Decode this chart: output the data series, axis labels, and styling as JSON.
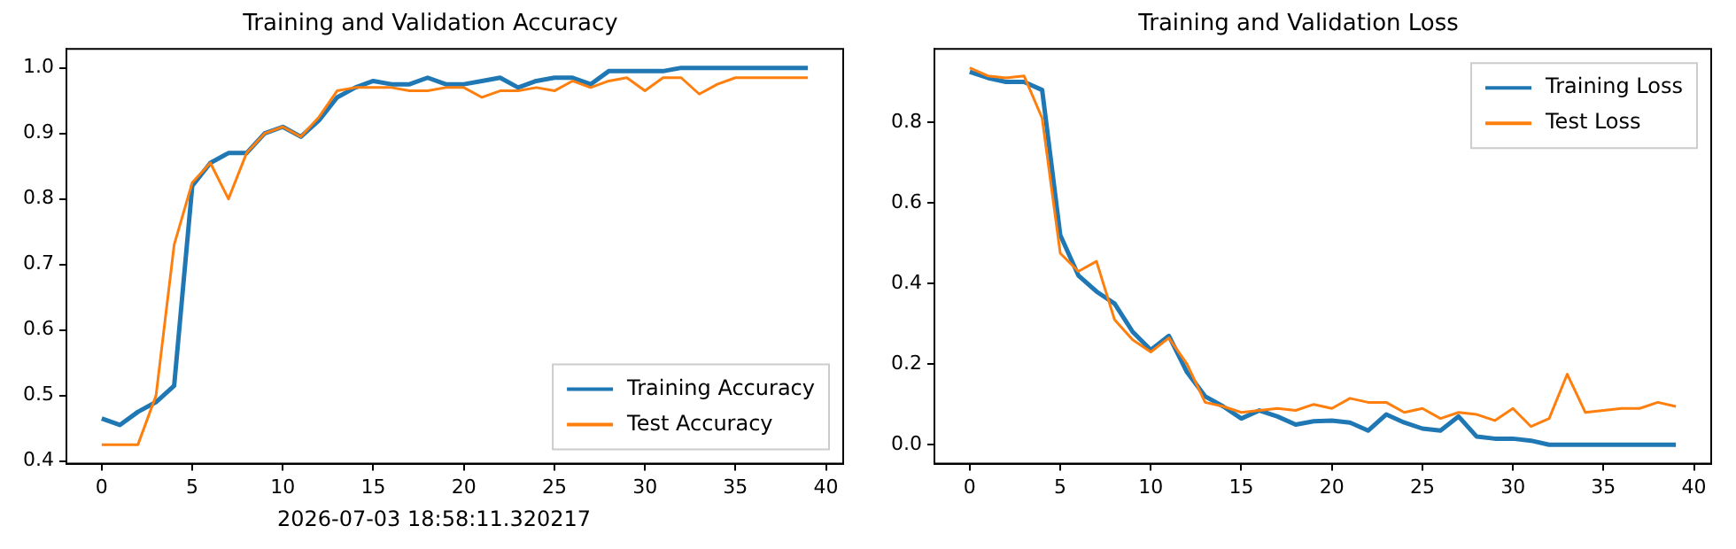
{
  "chart_data": [
    {
      "type": "line",
      "title": "Training and Validation Accuracy",
      "legend": "bottom right",
      "x": [
        0,
        1,
        2,
        3,
        4,
        5,
        6,
        7,
        8,
        9,
        10,
        11,
        12,
        13,
        14,
        15,
        16,
        17,
        18,
        19,
        20,
        21,
        22,
        23,
        24,
        25,
        26,
        27,
        28,
        29,
        30,
        31,
        32,
        33,
        34,
        35,
        36,
        37,
        38,
        39
      ],
      "series": [
        {
          "name": "Training Accuracy",
          "color": "#1f77b4",
          "values": [
            0.465,
            0.455,
            0.475,
            0.49,
            0.515,
            0.82,
            0.855,
            0.87,
            0.87,
            0.9,
            0.91,
            0.895,
            0.92,
            0.955,
            0.97,
            0.98,
            0.975,
            0.975,
            0.985,
            0.975,
            0.975,
            0.98,
            0.985,
            0.97,
            0.98,
            0.985,
            0.985,
            0.975,
            0.995,
            0.995,
            0.995,
            0.995,
            1.0,
            1.0,
            1.0,
            1.0,
            1.0,
            1.0,
            1.0,
            1.0
          ]
        },
        {
          "name": "Test Accuracy",
          "color": "#ff7f0e",
          "values": [
            0.425,
            0.425,
            0.425,
            0.5,
            0.73,
            0.825,
            0.855,
            0.8,
            0.87,
            0.9,
            0.91,
            0.895,
            0.925,
            0.965,
            0.97,
            0.97,
            0.97,
            0.965,
            0.965,
            0.97,
            0.97,
            0.955,
            0.965,
            0.965,
            0.97,
            0.965,
            0.98,
            0.97,
            0.98,
            0.985,
            0.965,
            0.985,
            0.985,
            0.96,
            0.975,
            0.985,
            0.985,
            0.985,
            0.985,
            0.985
          ]
        }
      ],
      "xlim": [
        -1.95,
        40.95
      ],
      "xticks": [
        0,
        5,
        10,
        15,
        20,
        25,
        30,
        35,
        40
      ],
      "ylim": [
        0.396,
        1.029
      ],
      "yticks": [
        {
          "value": 0.4,
          "label": "0.4"
        },
        {
          "value": 0.5,
          "label": "0.5"
        },
        {
          "value": 0.6,
          "label": "0.6"
        },
        {
          "value": 0.7,
          "label": "0.7"
        },
        {
          "value": 0.8,
          "label": "0.8"
        },
        {
          "value": 0.9,
          "label": "0.9"
        },
        {
          "value": 1.0,
          "label": "1.0"
        }
      ],
      "annotations": [
        "2026-07-03 18:58:11.320217"
      ]
    },
    {
      "type": "line",
      "title": "Training and Validation Loss",
      "legend": "top right",
      "x": [
        0,
        1,
        2,
        3,
        4,
        5,
        6,
        7,
        8,
        9,
        10,
        11,
        12,
        13,
        14,
        15,
        16,
        17,
        18,
        19,
        20,
        21,
        22,
        23,
        24,
        25,
        26,
        27,
        28,
        29,
        30,
        31,
        32,
        33,
        34,
        35,
        36,
        37,
        38,
        39
      ],
      "series": [
        {
          "name": "Training Loss",
          "color": "#1f77b4",
          "values": [
            0.925,
            0.91,
            0.9,
            0.9,
            0.88,
            0.52,
            0.42,
            0.38,
            0.35,
            0.28,
            0.235,
            0.27,
            0.18,
            0.12,
            0.095,
            0.065,
            0.085,
            0.07,
            0.05,
            0.058,
            0.06,
            0.055,
            0.035,
            0.075,
            0.055,
            0.04,
            0.035,
            0.07,
            0.02,
            0.015,
            0.015,
            0.01,
            0.0,
            0.0,
            0.0,
            0.0,
            0.0,
            0.0,
            0.0,
            0.0
          ]
        },
        {
          "name": "Test Loss",
          "color": "#ff7f0e",
          "values": [
            0.935,
            0.915,
            0.91,
            0.915,
            0.81,
            0.475,
            0.43,
            0.455,
            0.31,
            0.26,
            0.23,
            0.265,
            0.2,
            0.105,
            0.095,
            0.08,
            0.085,
            0.09,
            0.085,
            0.1,
            0.09,
            0.115,
            0.105,
            0.105,
            0.08,
            0.09,
            0.065,
            0.08,
            0.075,
            0.06,
            0.09,
            0.045,
            0.065,
            0.175,
            0.08,
            0.085,
            0.09,
            0.09,
            0.105,
            0.095
          ]
        }
      ],
      "xlim": [
        -1.95,
        40.95
      ],
      "xticks": [
        0,
        5,
        10,
        15,
        20,
        25,
        30,
        35,
        40
      ],
      "ylim": [
        -0.047,
        0.982
      ],
      "yticks": [
        {
          "value": 0.0,
          "label": "0.0"
        },
        {
          "value": 0.2,
          "label": "0.2"
        },
        {
          "value": 0.4,
          "label": "0.4"
        },
        {
          "value": 0.6,
          "label": "0.6"
        },
        {
          "value": 0.8,
          "label": "0.8"
        }
      ]
    }
  ]
}
